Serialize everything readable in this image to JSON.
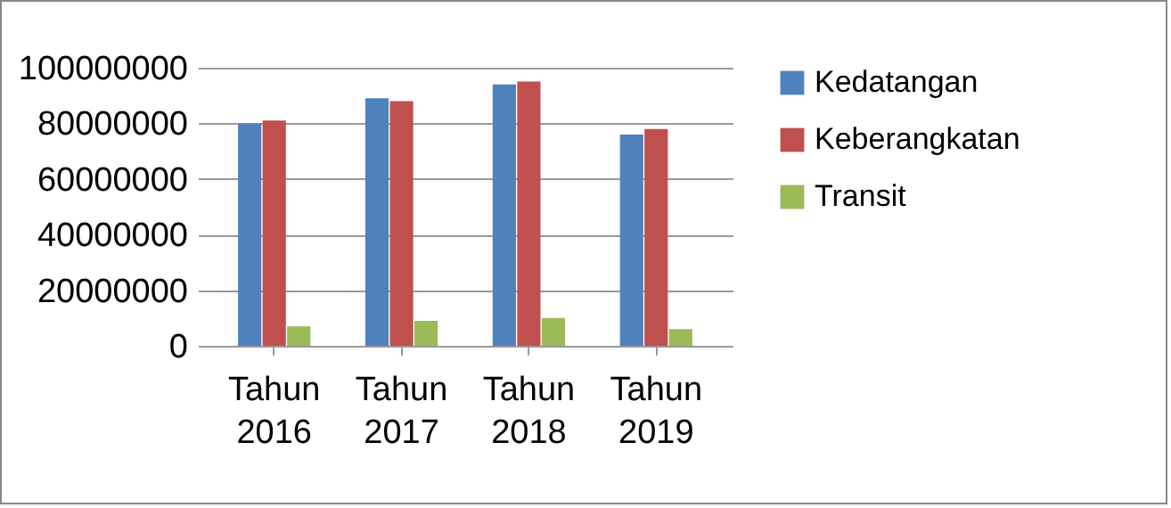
{
  "chart_data": {
    "type": "bar",
    "categories": [
      "Tahun 2016",
      "Tahun 2017",
      "Tahun 2018",
      "Tahun 2019"
    ],
    "series": [
      {
        "name": "Kedatangan",
        "color": "#4f81bd",
        "values": [
          80000000,
          89000000,
          94000000,
          76000000
        ]
      },
      {
        "name": "Keberangkatan",
        "color": "#c0504d",
        "values": [
          81000000,
          88000000,
          95000000,
          78000000
        ]
      },
      {
        "name": "Transit",
        "color": "#9bbb59",
        "values": [
          7000000,
          9000000,
          10000000,
          6000000
        ]
      }
    ],
    "ylim": [
      0,
      100000000
    ],
    "yticks": [
      0,
      20000000,
      40000000,
      60000000,
      80000000,
      100000000
    ],
    "grid": "y",
    "legend": "right"
  }
}
